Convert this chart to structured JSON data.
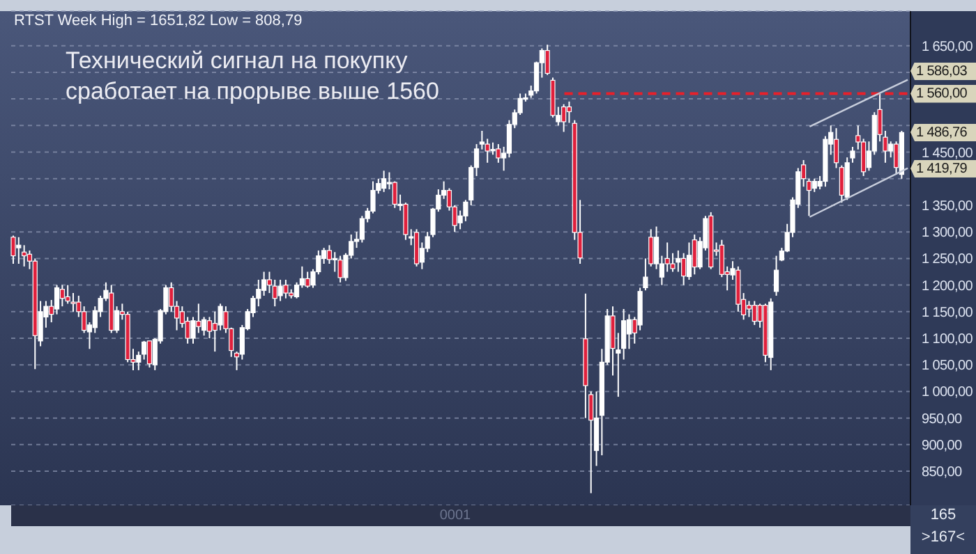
{
  "chart_data": {
    "type": "candlestick",
    "title": "RTST Week High = 1651,82 Low = 808,79",
    "categories": [
      null,
      null,
      null,
      null,
      null,
      null,
      null,
      null,
      null,
      null,
      null,
      null,
      null,
      null,
      null,
      null,
      null,
      null,
      null,
      null,
      null,
      null,
      null,
      null,
      null,
      null,
      null,
      null,
      null,
      null,
      null,
      null,
      null,
      null,
      null,
      null,
      null,
      null,
      null,
      null,
      null,
      null,
      null,
      null,
      null,
      null,
      null,
      null,
      null,
      null,
      null,
      null,
      null,
      null,
      null,
      null,
      null,
      null,
      null,
      null,
      null,
      null,
      null,
      null,
      null,
      null,
      null,
      null,
      null,
      null,
      null,
      null,
      null,
      null,
      null,
      null,
      null,
      null,
      null,
      null,
      null,
      null,
      null,
      null,
      null,
      null,
      null,
      null,
      null,
      null,
      null,
      null,
      null,
      null,
      null,
      null,
      null,
      null,
      null,
      null,
      null,
      null,
      null,
      null,
      null,
      null,
      null,
      null,
      null,
      null,
      null,
      null,
      null,
      null,
      null,
      null,
      null,
      null,
      null,
      null,
      null,
      null,
      null,
      null,
      null,
      null,
      null,
      null,
      null,
      null,
      null,
      null,
      null,
      null,
      null,
      null,
      null,
      null,
      null,
      null,
      null,
      null,
      null,
      null,
      null,
      null,
      null,
      null,
      null,
      null,
      null,
      null,
      null,
      null,
      null,
      null,
      null,
      null,
      null,
      null,
      null,
      null,
      null,
      null,
      null
    ],
    "ohlc": [
      [
        1290,
        1293,
        1240,
        1255
      ],
      [
        1270,
        1290,
        1240,
        1275
      ],
      [
        1262,
        1275,
        1235,
        1255
      ],
      [
        1258,
        1265,
        1230,
        1245
      ],
      [
        1245,
        1250,
        1042,
        1105
      ],
      [
        1095,
        1170,
        1085,
        1150
      ],
      [
        1140,
        1170,
        1120,
        1160
      ],
      [
        1160,
        1172,
        1130,
        1145
      ],
      [
        1155,
        1200,
        1145,
        1195
      ],
      [
        1192,
        1200,
        1160,
        1175
      ],
      [
        1178,
        1200,
        1165,
        1170
      ],
      [
        1168,
        1185,
        1150,
        1166
      ],
      [
        1168,
        1180,
        1140,
        1150
      ],
      [
        1150,
        1160,
        1110,
        1115
      ],
      [
        1112,
        1130,
        1080,
        1125
      ],
      [
        1120,
        1160,
        1110,
        1152
      ],
      [
        1150,
        1180,
        1140,
        1175
      ],
      [
        1175,
        1205,
        1170,
        1190
      ],
      [
        1185,
        1200,
        1110,
        1115
      ],
      [
        1115,
        1160,
        1110,
        1152
      ],
      [
        1150,
        1165,
        1135,
        1145
      ],
      [
        1145,
        1150,
        1055,
        1060
      ],
      [
        1060,
        1080,
        1040,
        1055
      ],
      [
        1055,
        1075,
        1040,
        1068
      ],
      [
        1070,
        1095,
        1060,
        1093
      ],
      [
        1095,
        1095,
        1045,
        1052
      ],
      [
        1050,
        1100,
        1040,
        1098
      ],
      [
        1095,
        1155,
        1090,
        1152
      ],
      [
        1150,
        1200,
        1145,
        1195
      ],
      [
        1195,
        1205,
        1150,
        1160
      ],
      [
        1160,
        1170,
        1115,
        1138
      ],
      [
        1150,
        1160,
        1120,
        1128
      ],
      [
        1132,
        1140,
        1090,
        1100
      ],
      [
        1100,
        1140,
        1090,
        1133
      ],
      [
        1132,
        1165,
        1110,
        1122
      ],
      [
        1115,
        1140,
        1105,
        1135
      ],
      [
        1133,
        1140,
        1100,
        1113
      ],
      [
        1128,
        1150,
        1075,
        1115
      ],
      [
        1125,
        1165,
        1115,
        1160
      ],
      [
        1150,
        1160,
        1110,
        1118
      ],
      [
        1118,
        1120,
        1065,
        1077
      ],
      [
        1072,
        1075,
        1040,
        1065
      ],
      [
        1070,
        1125,
        1060,
        1120
      ],
      [
        1118,
        1155,
        1115,
        1150
      ],
      [
        1148,
        1180,
        1140,
        1175
      ],
      [
        1175,
        1210,
        1160,
        1192
      ],
      [
        1190,
        1225,
        1180,
        1210
      ],
      [
        1210,
        1225,
        1185,
        1200
      ],
      [
        1198,
        1210,
        1160,
        1175
      ],
      [
        1180,
        1210,
        1170,
        1198
      ],
      [
        1200,
        1210,
        1175,
        1185
      ],
      [
        1185,
        1192,
        1175,
        1180
      ],
      [
        1178,
        1205,
        1175,
        1200
      ],
      [
        1200,
        1235,
        1195,
        1212
      ],
      [
        1212,
        1225,
        1195,
        1198
      ],
      [
        1200,
        1230,
        1195,
        1225
      ],
      [
        1225,
        1265,
        1220,
        1255
      ],
      [
        1250,
        1270,
        1240,
        1265
      ],
      [
        1265,
        1275,
        1240,
        1248
      ],
      [
        1248,
        1262,
        1225,
        1250
      ],
      [
        1247,
        1255,
        1205,
        1214
      ],
      [
        1214,
        1260,
        1208,
        1256
      ],
      [
        1256,
        1295,
        1250,
        1282
      ],
      [
        1282,
        1300,
        1270,
        1286
      ],
      [
        1286,
        1330,
        1280,
        1325
      ],
      [
        1325,
        1345,
        1318,
        1339
      ],
      [
        1339,
        1395,
        1335,
        1378
      ],
      [
        1378,
        1400,
        1372,
        1391
      ],
      [
        1382,
        1415,
        1375,
        1400
      ],
      [
        1393,
        1412,
        1380,
        1393
      ],
      [
        1393,
        1395,
        1345,
        1352
      ],
      [
        1352,
        1370,
        1340,
        1352
      ],
      [
        1352,
        1355,
        1285,
        1295
      ],
      [
        1291,
        1305,
        1275,
        1291
      ],
      [
        1299,
        1305,
        1235,
        1240
      ],
      [
        1243,
        1280,
        1230,
        1269
      ],
      [
        1269,
        1300,
        1262,
        1291
      ],
      [
        1295,
        1345,
        1290,
        1343
      ],
      [
        1343,
        1380,
        1338,
        1369
      ],
      [
        1369,
        1395,
        1362,
        1378
      ],
      [
        1378,
        1382,
        1340,
        1347
      ],
      [
        1347,
        1350,
        1300,
        1312
      ],
      [
        1317,
        1340,
        1305,
        1330
      ],
      [
        1330,
        1360,
        1320,
        1356
      ],
      [
        1360,
        1425,
        1350,
        1421
      ],
      [
        1421,
        1465,
        1405,
        1456
      ],
      [
        1465,
        1490,
        1455,
        1469
      ],
      [
        1465,
        1475,
        1430,
        1452
      ],
      [
        1455,
        1468,
        1445,
        1455
      ],
      [
        1456,
        1465,
        1430,
        1439
      ],
      [
        1439,
        1460,
        1415,
        1448
      ],
      [
        1448,
        1510,
        1440,
        1502
      ],
      [
        1502,
        1530,
        1495,
        1524
      ],
      [
        1524,
        1560,
        1520,
        1551
      ],
      [
        1550,
        1560,
        1545,
        1552
      ],
      [
        1557,
        1575,
        1552,
        1565
      ],
      [
        1565,
        1620,
        1560,
        1618
      ],
      [
        1618,
        1645,
        1590,
        1641
      ],
      [
        1641,
        1651.82,
        1595,
        1598
      ],
      [
        1585,
        1590,
        1515,
        1519
      ],
      [
        1507,
        1535,
        1500,
        1519
      ],
      [
        1535,
        1540,
        1488,
        1507
      ],
      [
        1535,
        1545,
        1505,
        1526
      ],
      [
        1504,
        1510,
        1285,
        1299
      ],
      [
        1299,
        1360,
        1240,
        1251
      ],
      [
        1099,
        1184,
        950,
        1011
      ],
      [
        994,
        1000,
        808.79,
        946
      ],
      [
        889,
        1000,
        860,
        950
      ],
      [
        955,
        1080,
        880,
        1055
      ],
      [
        1055,
        1155,
        1050,
        1142
      ],
      [
        1142,
        1160,
        1030,
        1081
      ],
      [
        1072,
        1110,
        990,
        1078
      ],
      [
        1081,
        1155,
        1060,
        1133
      ],
      [
        1108,
        1145,
        1080,
        1135
      ],
      [
        1135,
        1140,
        1090,
        1110
      ],
      [
        1125,
        1195,
        1115,
        1188
      ],
      [
        1195,
        1250,
        1190,
        1215
      ],
      [
        1290,
        1305,
        1235,
        1240
      ],
      [
        1240,
        1310,
        1230,
        1290
      ],
      [
        1215,
        1255,
        1200,
        1240
      ],
      [
        1250,
        1280,
        1225,
        1240
      ],
      [
        1240,
        1260,
        1225,
        1231
      ],
      [
        1243,
        1265,
        1225,
        1250
      ],
      [
        1250,
        1260,
        1200,
        1217
      ],
      [
        1216,
        1280,
        1210,
        1256
      ],
      [
        1285,
        1295,
        1220,
        1234
      ],
      [
        1234,
        1290,
        1230,
        1282
      ],
      [
        1270,
        1330,
        1265,
        1325
      ],
      [
        1330,
        1337,
        1230,
        1234
      ],
      [
        1266,
        1280,
        1255,
        1264
      ],
      [
        1275,
        1285,
        1215,
        1220
      ],
      [
        1225,
        1235,
        1190,
        1220
      ],
      [
        1219,
        1245,
        1210,
        1231
      ],
      [
        1228,
        1235,
        1150,
        1164
      ],
      [
        1173,
        1185,
        1135,
        1144
      ],
      [
        1162,
        1170,
        1140,
        1155
      ],
      [
        1162,
        1170,
        1125,
        1132
      ],
      [
        1162,
        1165,
        1120,
        1132
      ],
      [
        1162,
        1165,
        1055,
        1068
      ],
      [
        1064,
        1175,
        1040,
        1168
      ],
      [
        1188,
        1255,
        1180,
        1228
      ],
      [
        1247,
        1270,
        1245,
        1264
      ],
      [
        1264,
        1315,
        1262,
        1299
      ],
      [
        1299,
        1365,
        1290,
        1360
      ],
      [
        1352,
        1420,
        1345,
        1413
      ],
      [
        1426,
        1435,
        1385,
        1400
      ],
      [
        1395,
        1400,
        1330,
        1378
      ],
      [
        1382,
        1400,
        1375,
        1395
      ],
      [
        1386,
        1405,
        1380,
        1395
      ],
      [
        1395,
        1480,
        1385,
        1474
      ],
      [
        1465,
        1500,
        1445,
        1487
      ],
      [
        1474,
        1495,
        1420,
        1430
      ],
      [
        1421,
        1425,
        1355,
        1369
      ],
      [
        1365,
        1440,
        1360,
        1430
      ],
      [
        1439,
        1460,
        1430,
        1452
      ],
      [
        1481,
        1500,
        1455,
        1469
      ],
      [
        1469,
        1475,
        1405,
        1413
      ],
      [
        1421,
        1470,
        1415,
        1452
      ],
      [
        1452,
        1525,
        1445,
        1519
      ],
      [
        1530,
        1560,
        1470,
        1483
      ],
      [
        1478,
        1490,
        1430,
        1452
      ],
      [
        1452,
        1470,
        1440,
        1465
      ],
      [
        1465,
        1470,
        1408,
        1421
      ],
      [
        1408,
        1490,
        1400,
        1486.76
      ],
      null
    ],
    "colors": [
      "#e0203c",
      "#ffffff",
      "#e0203c",
      "#e0203c",
      "#e0203c",
      "#ffffff",
      "#ffffff",
      "#e0203c",
      "#ffffff",
      "#e0203c",
      "#e0203c",
      "#e0203c",
      "#e0203c",
      "#e0203c",
      "#ffffff",
      "#ffffff",
      "#ffffff",
      "#ffffff",
      "#e0203c",
      "#ffffff",
      "#e0203c",
      "#e0203c",
      "#e0203c",
      "#ffffff",
      "#ffffff",
      "#e0203c",
      "#ffffff",
      "#ffffff",
      "#ffffff",
      "#e0203c",
      "#e0203c",
      "#e0203c",
      "#e0203c",
      "#ffffff",
      "#e0203c",
      "#ffffff",
      "#e0203c",
      "#e0203c",
      "#ffffff",
      "#e0203c",
      "#e0203c",
      "#e0203c",
      "#ffffff",
      "#ffffff",
      "#ffffff",
      "#ffffff",
      "#ffffff",
      "#e0203c",
      "#e0203c",
      "#ffffff",
      "#e0203c",
      "#e0203c",
      "#ffffff",
      "#ffffff",
      "#e0203c",
      "#ffffff",
      "#ffffff",
      "#ffffff",
      "#e0203c",
      "#ffffff",
      "#e0203c",
      "#ffffff",
      "#ffffff",
      "#ffffff",
      "#ffffff",
      "#ffffff",
      "#ffffff",
      "#ffffff",
      "#ffffff",
      "#ffffff",
      "#e0203c",
      "#ffffff",
      "#e0203c",
      "#ffffff",
      "#e0203c",
      "#ffffff",
      "#ffffff",
      "#ffffff",
      "#ffffff",
      "#ffffff",
      "#e0203c",
      "#e0203c",
      "#ffffff",
      "#ffffff",
      "#ffffff",
      "#ffffff",
      "#ffffff",
      "#e0203c",
      "#ffffff",
      "#e0203c",
      "#ffffff",
      "#ffffff",
      "#ffffff",
      "#ffffff",
      "#ffffff",
      "#ffffff",
      "#ffffff",
      "#ffffff",
      "#e0203c",
      "#e0203c",
      "#ffffff",
      "#e0203c",
      "#e0203c",
      "#e0203c",
      "#e0203c",
      "#e0203c",
      "#e0203c",
      "#ffffff",
      "#ffffff",
      "#ffffff",
      "#e0203c",
      "#ffffff",
      "#ffffff",
      "#ffffff",
      "#e0203c",
      "#ffffff",
      "#ffffff",
      "#e0203c",
      "#ffffff",
      "#ffffff",
      "#e0203c",
      "#e0203c",
      "#ffffff",
      "#e0203c",
      "#ffffff",
      "#e0203c",
      "#ffffff",
      "#ffffff",
      "#e0203c",
      "#e0203c",
      "#e0203c",
      "#e0203c",
      "#ffffff",
      "#e0203c",
      "#e0203c",
      "#e0203c",
      "#e0203c",
      "#e0203c",
      "#e0203c",
      "#ffffff",
      "#ffffff",
      "#ffffff",
      "#ffffff",
      "#ffffff",
      "#ffffff",
      "#e0203c",
      "#e0203c",
      "#ffffff",
      "#ffffff",
      "#ffffff",
      "#ffffff",
      "#e0203c",
      "#e0203c",
      "#ffffff",
      "#ffffff",
      "#e0203c",
      "#e0203c",
      "#ffffff",
      "#ffffff",
      "#e0203c",
      "#e0203c",
      "#ffffff",
      "#e0203c",
      "#ffffff",
      null
    ],
    "series": [
      {
        "type": "line",
        "color": "#c8cedc",
        "values": [
          null,
          null,
          null,
          null,
          null,
          null,
          null,
          null,
          null,
          null,
          null,
          null,
          null,
          null,
          null,
          null,
          null,
          null,
          null,
          null,
          null,
          null,
          null,
          null,
          null,
          null,
          null,
          null,
          null,
          null,
          null,
          null,
          null,
          null,
          null,
          null,
          null,
          null,
          null,
          null,
          null,
          null,
          null,
          null,
          null,
          null,
          null,
          null,
          null,
          null,
          null,
          null,
          null,
          null,
          null,
          null,
          null,
          null,
          null,
          null,
          null,
          null,
          null,
          null,
          null,
          null,
          null,
          null,
          null,
          null,
          null,
          null,
          null,
          null,
          null,
          null,
          null,
          null,
          null,
          null,
          null,
          null,
          null,
          null,
          null,
          null,
          null,
          null,
          null,
          null,
          null,
          null,
          null,
          null,
          null,
          null,
          null,
          null,
          null,
          null,
          null,
          null,
          null,
          null,
          null,
          null,
          null,
          null,
          null,
          null,
          null,
          null,
          null,
          null,
          null,
          null,
          null,
          null,
          null,
          null,
          null,
          null,
          null,
          null,
          null,
          null,
          null,
          null,
          null,
          null,
          null,
          null,
          null,
          null,
          null,
          null,
          null,
          null,
          null,
          null,
          null,
          null,
          null,
          null,
          null,
          null,
          1498,
          null,
          null,
          null,
          null,
          null,
          null,
          null,
          null,
          null,
          null,
          null,
          null,
          null,
          null,
          null,
          null,
          null,
          1586.03
        ]
      },
      {
        "type": "line",
        "color": "#c8cedc",
        "values": [
          null,
          null,
          null,
          null,
          null,
          null,
          null,
          null,
          null,
          null,
          null,
          null,
          null,
          null,
          null,
          null,
          null,
          null,
          null,
          null,
          null,
          null,
          null,
          null,
          null,
          null,
          null,
          null,
          null,
          null,
          null,
          null,
          null,
          null,
          null,
          null,
          null,
          null,
          null,
          null,
          null,
          null,
          null,
          null,
          null,
          null,
          null,
          null,
          null,
          null,
          null,
          null,
          null,
          null,
          null,
          null,
          null,
          null,
          null,
          null,
          null,
          null,
          null,
          null,
          null,
          null,
          null,
          null,
          null,
          null,
          null,
          null,
          null,
          null,
          null,
          null,
          null,
          null,
          null,
          null,
          null,
          null,
          null,
          null,
          null,
          null,
          null,
          null,
          null,
          null,
          null,
          null,
          null,
          null,
          null,
          null,
          null,
          null,
          null,
          null,
          null,
          null,
          null,
          null,
          null,
          null,
          null,
          null,
          null,
          null,
          null,
          null,
          null,
          null,
          null,
          null,
          null,
          null,
          null,
          null,
          null,
          null,
          null,
          null,
          null,
          null,
          null,
          null,
          null,
          null,
          null,
          null,
          null,
          null,
          null,
          null,
          null,
          null,
          null,
          null,
          null,
          null,
          null,
          null,
          null,
          null,
          1328,
          null,
          null,
          null,
          null,
          null,
          null,
          null,
          null,
          null,
          null,
          null,
          null,
          null,
          null,
          null,
          null,
          null,
          1419.79
        ]
      }
    ],
    "ylim": [
      786,
      1715
    ],
    "yticks": [
      {
        "value": 850,
        "label": "850,00"
      },
      {
        "value": 900,
        "label": "900,00"
      },
      {
        "value": 950,
        "label": "950,00"
      },
      {
        "value": 1000,
        "label": "1 000,00"
      },
      {
        "value": 1050,
        "label": "1 050,00"
      },
      {
        "value": 1100,
        "label": "1 100,00"
      },
      {
        "value": 1150,
        "label": "1 150,00"
      },
      {
        "value": 1200,
        "label": "1 200,00"
      },
      {
        "value": 1250,
        "label": "1 250,00"
      },
      {
        "value": 1300,
        "label": "1 300,00"
      },
      {
        "value": 1350,
        "label": "1 350,00"
      },
      {
        "value": 1400,
        "label": null
      },
      {
        "value": 1450,
        "label": "1 450,00"
      },
      {
        "value": 1500,
        "label": null
      },
      {
        "value": 1550,
        "label": null
      },
      {
        "value": 1600,
        "label": null
      },
      {
        "value": 1650,
        "label": "1 650,00"
      }
    ],
    "grid": "y",
    "tick_labels": "y",
    "ref_lines": [
      {
        "axis": "y",
        "value": 1560,
        "label": "1 560,00",
        "color": "#e8202a",
        "line_style": "dashed"
      }
    ],
    "annotations": [
      "Технический сигнал на покупку\nсработает на прорыве выше 1560",
      "0001",
      "165",
      ">167<",
      "1 586,03",
      "1 486,76",
      "1 419,79"
    ]
  }
}
